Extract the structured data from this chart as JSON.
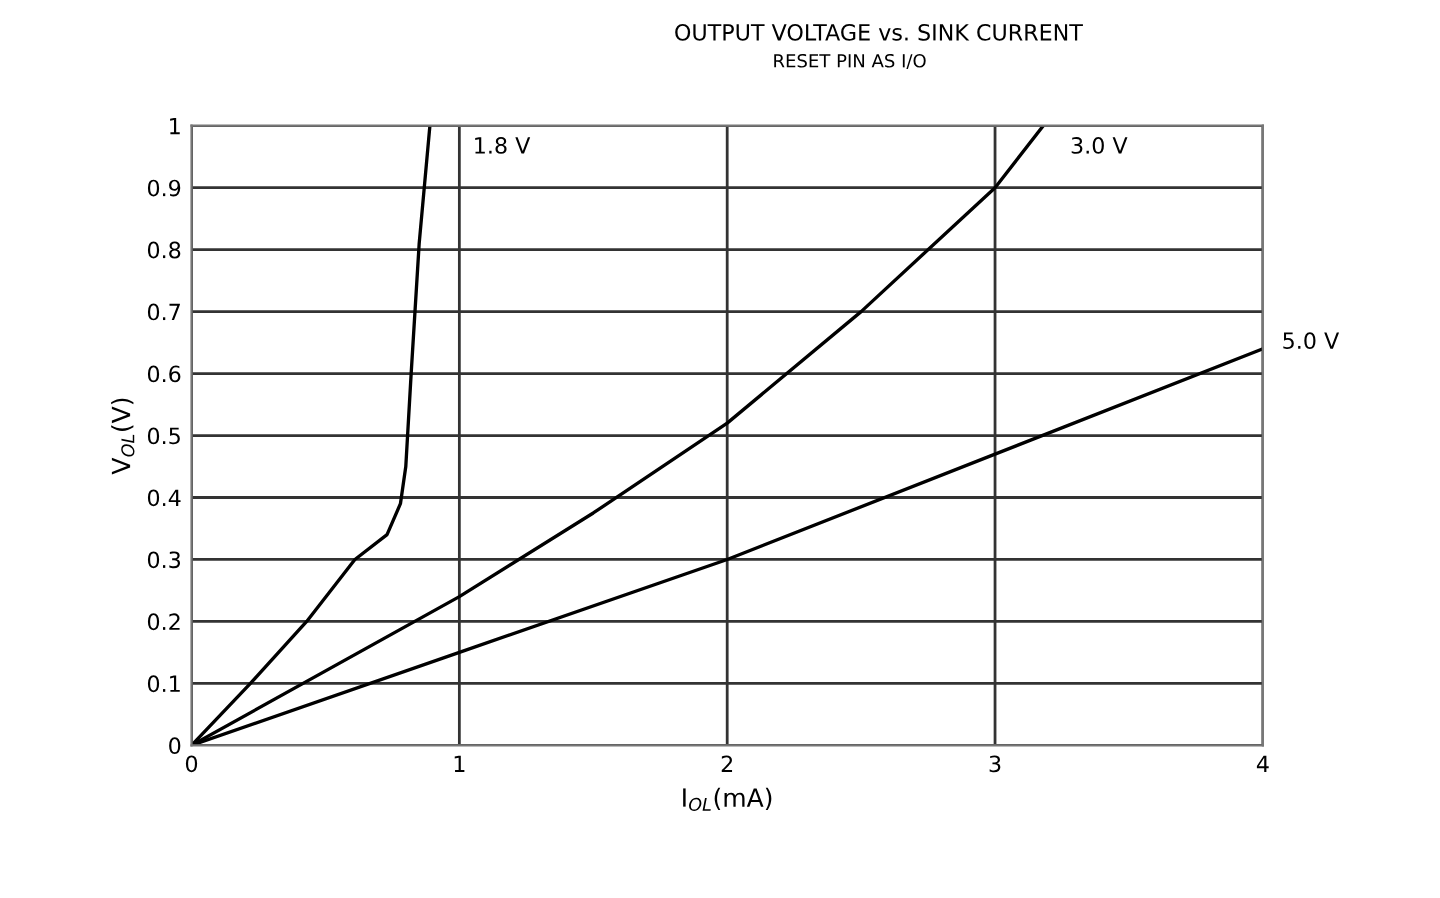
{
  "chart_data": {
    "type": "line",
    "title": "OUTPUT VOLTAGE vs. SINK CURRENT",
    "subtitle": "RESET PIN AS I/O",
    "xlabel": "I$_{OL}$(mA)",
    "ylabel": "V$_{OL}$(V)",
    "xlim": [
      0,
      4
    ],
    "xticks": [
      0,
      1,
      2,
      3,
      4
    ],
    "ylim": [
      0,
      1
    ],
    "yticks": [
      0,
      0.1,
      0.2,
      0.3,
      0.4,
      0.5,
      0.6,
      0.7,
      0.8,
      0.9,
      1
    ],
    "grid": true,
    "legend": false,
    "marker": "none",
    "line_style": "solid",
    "series": [
      {
        "name": "1.8 V",
        "color": "#000000",
        "x": [
          0,
          0.22,
          0.43,
          0.61,
          0.73,
          0.78,
          0.8,
          0.82,
          0.85,
          0.89
        ],
        "values": [
          0,
          0.1,
          0.2,
          0.3,
          0.34,
          0.39,
          0.45,
          0.6,
          0.81,
          1.0
        ]
      },
      {
        "name": "3.0 V",
        "color": "#000000",
        "x": [
          0,
          1,
          1.5,
          2,
          2.5,
          3,
          3.18
        ],
        "values": [
          0,
          0.24,
          0.375,
          0.52,
          0.7,
          0.9,
          1.0
        ]
      },
      {
        "name": "5.0 V",
        "color": "#000000",
        "x": [
          0,
          1,
          2,
          3,
          4
        ],
        "values": [
          0,
          0.15,
          0.3,
          0.47,
          0.64
        ]
      }
    ]
  }
}
